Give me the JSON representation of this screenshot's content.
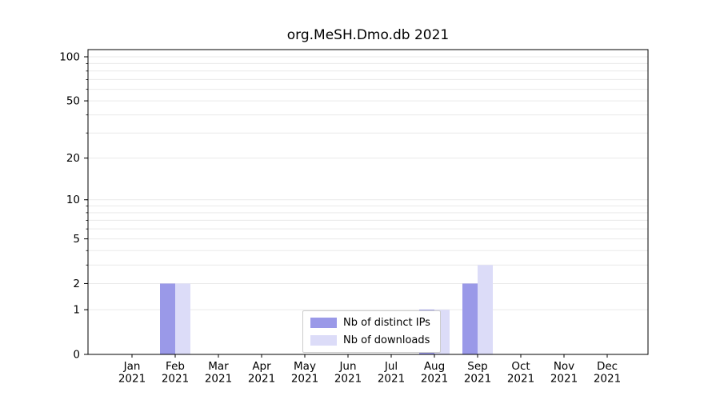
{
  "title": "org.MeSH.Dmo.db 2021",
  "chart_data": {
    "type": "bar",
    "title": "org.MeSH.Dmo.db 2021",
    "categories": [
      "Jan 2021",
      "Feb 2021",
      "Mar 2021",
      "Apr 2021",
      "May 2021",
      "Jun 2021",
      "Jul 2021",
      "Aug 2021",
      "Sep 2021",
      "Oct 2021",
      "Nov 2021",
      "Dec 2021"
    ],
    "series": [
      {
        "name": "Nb of distinct IPs",
        "color": "#9a99e8",
        "values": [
          0,
          2,
          0,
          0,
          0,
          0,
          0,
          1,
          2,
          0,
          0,
          0
        ]
      },
      {
        "name": "Nb of downloads",
        "color": "#dcdcf8",
        "values": [
          0,
          2,
          0,
          0,
          0,
          0,
          0,
          1,
          3,
          0,
          0,
          0
        ]
      }
    ],
    "xlabel": "",
    "ylabel": "",
    "yscale": "log10(v+1)",
    "ylim": [
      0,
      100
    ],
    "ytick_labels": [
      0,
      1,
      2,
      5,
      10,
      20,
      50,
      100
    ],
    "minor_gridlines": [
      1,
      2,
      3,
      4,
      5,
      6,
      7,
      8,
      9,
      10,
      20,
      30,
      40,
      50,
      60,
      70,
      80,
      90,
      100
    ],
    "grid": true,
    "legend_position": "bottom-center"
  },
  "colors": {
    "axis": "#000000",
    "gridline": "#e9e9e9",
    "tick_label": "#000000",
    "legend_border": "#cccccc"
  }
}
